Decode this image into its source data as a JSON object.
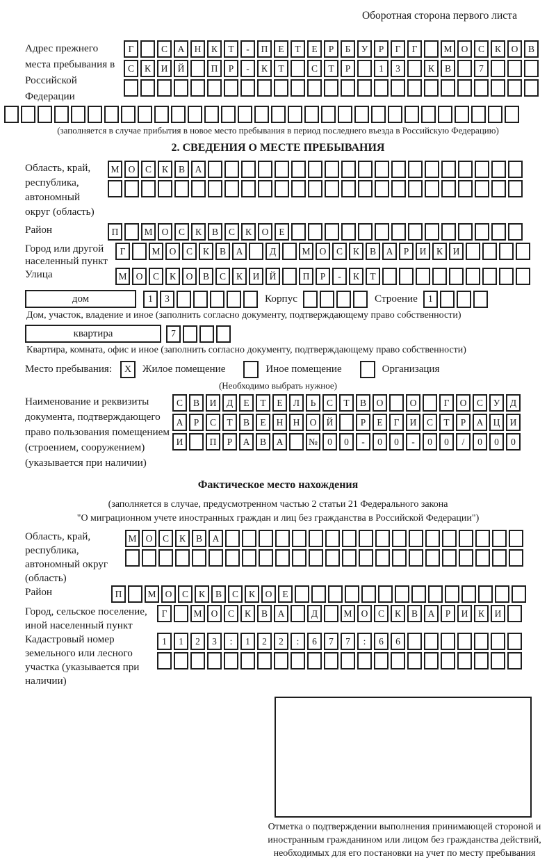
{
  "page": {
    "side_note": "Оборотная сторона первого листа"
  },
  "prev_address": {
    "label": "Адрес прежнего места пребывания в Российской Федерации",
    "line1": {
      "text": "Г САНКТ-ПЕТЕРБУРГГ МОСКОВ",
      "len": 25
    },
    "line2": {
      "text": "СКИЙ ПР-КТ СТР 13 КВ 7",
      "len": 25
    },
    "line3": {
      "text": "",
      "len": 25
    },
    "line4": {
      "text": "",
      "len": 31
    },
    "note": "(заполняется в случае прибытия в новое место пребывания в период последнего въезда в Российскую Федерацию)"
  },
  "section2": {
    "title": "2. СВЕДЕНИЯ О МЕСТЕ ПРЕБЫВАНИЯ",
    "region": {
      "label": "Область, край, республика, автономный округ (область)",
      "line1": {
        "text": "МОСКВА",
        "len": 25
      },
      "line2": {
        "text": "",
        "len": 25
      }
    },
    "district": {
      "label": "Район",
      "line": {
        "text": "П МОСКВСКОЕ",
        "len": 25
      }
    },
    "city": {
      "label": "Город или другой населенный пункт",
      "line": {
        "text": "Г МОСКВА Д МОСКВАРИКИ",
        "len": 25
      }
    },
    "street": {
      "label": "Улица",
      "line": {
        "text": "МОСКОВСКИЙ ПР-КТ",
        "len": 25
      }
    },
    "house": {
      "label": "дом",
      "value": {
        "text": "13",
        "len": 7
      },
      "korpus_label": "Корпус",
      "korpus": {
        "text": "",
        "len": 4
      },
      "stroenie_label": "Строение",
      "stroenie": {
        "text": "1",
        "len": 4
      },
      "note": "Дом, участок, владение и иное (заполнить согласно документу, подтверждающему право собственности)"
    },
    "apartment": {
      "label": "квартира",
      "value": {
        "text": "7",
        "len": 4
      },
      "note": "Квартира, комната, офис и иное (заполнить согласно документу, подтверждающему право собственности)"
    },
    "stay_type": {
      "label": "Место пребывания:",
      "options": [
        {
          "label": "Жилое помещение",
          "mark": "X"
        },
        {
          "label": "Иное помещение",
          "mark": ""
        },
        {
          "label": "Организация",
          "mark": ""
        }
      ],
      "note": "(Необходимо выбрать нужное)"
    },
    "title_document": {
      "label": "Наименование и реквизиты документа, подтверждающего право пользования помещением (строением, сооружением) (указывается при наличии)",
      "line1": {
        "text": "СВИДЕТЕЛЬСТВО О ГОСУД",
        "len": 21
      },
      "line2": {
        "text": "АРСТВЕННОЙ РЕГИСТРАЦИ",
        "len": 21
      },
      "line3": {
        "text": "И ПРАВА №00-00-00/000",
        "len": 21
      }
    }
  },
  "actual_location": {
    "title": "Фактическое место нахождения",
    "note_line1": "(заполняется в случае, предусмотренном частью 2 статьи 21 Федерального закона",
    "note_line2": "\"О миграционном учете иностранных граждан и лиц без гражданства в Российской Федерации\")",
    "region": {
      "label": "Область, край, республика, автономный округ (область)",
      "line1": {
        "text": "МОСКВА",
        "len": 24
      },
      "line2": {
        "text": "",
        "len": 24
      }
    },
    "district": {
      "label": "Район",
      "line": {
        "text": "П МОСКВСКОЕ",
        "len": 25
      }
    },
    "city": {
      "label": "Город, сельское поселение, иной населенный пункт",
      "line": {
        "text": "Г МОСКВА Д МОСКВАРИКИ",
        "len": 22
      }
    },
    "cadastral": {
      "label": "Кадастровый номер земельного или лесного участка (указывается при наличии)",
      "line1": {
        "text": "1123:122:677:66",
        "len": 22
      },
      "line2": {
        "text": "",
        "len": 22
      }
    },
    "stamp_note": "Отметка о подтверждении выполнения принимающей стороной и иностранным гражданином или лицом без гражданства действий, необходимых для его постановки на учет по месту пребывания"
  },
  "colors": {
    "ink": "#1a1a1a",
    "background": "#ffffff"
  }
}
